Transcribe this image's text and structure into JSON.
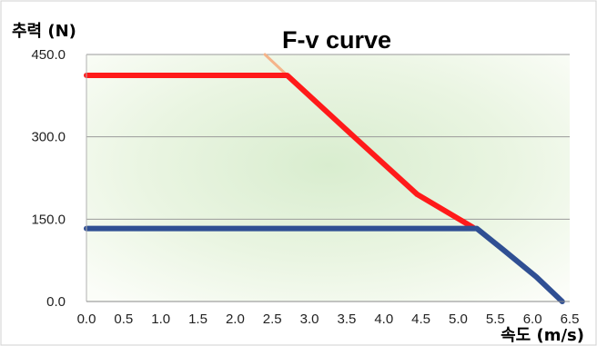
{
  "chart_data": {
    "type": "line",
    "title": "F-v curve",
    "ylabel": "추력 (N)",
    "xlabel": "속도 (m/s)",
    "xlim": [
      0,
      6.5
    ],
    "ylim": [
      0,
      450
    ],
    "x_ticks": [
      "0.0",
      "0.5",
      "1.0",
      "1.5",
      "2.0",
      "2.5",
      "3.0",
      "3.5",
      "4.0",
      "4.5",
      "5.0",
      "5.5",
      "6.0",
      "6.5"
    ],
    "y_ticks": [
      "0.0",
      "150.0",
      "300.0",
      "450.0"
    ],
    "grid": "horizontal",
    "plot_background": "light green radial gradient",
    "series": [
      {
        "color": "#ff1a1a",
        "points": [
          [
            0.0,
            412
          ],
          [
            2.7,
            412
          ],
          [
            3.6,
            300
          ],
          [
            4.45,
            195
          ],
          [
            5.2,
            135
          ]
        ]
      },
      {
        "color": "#2f4f93",
        "points": [
          [
            0.0,
            133
          ],
          [
            5.25,
            133
          ],
          [
            5.6,
            95
          ],
          [
            6.05,
            45
          ],
          [
            6.4,
            0
          ]
        ]
      },
      {
        "color": "#f5b48a",
        "points": [
          [
            2.4,
            450
          ],
          [
            2.7,
            412
          ]
        ]
      }
    ]
  }
}
